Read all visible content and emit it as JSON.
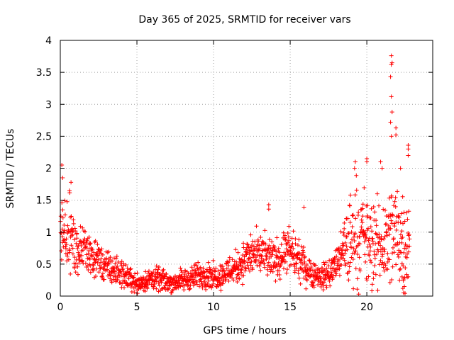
{
  "chart_data": {
    "type": "scatter",
    "title": "Day 365 of 2025, SRMTID for receiver vars",
    "xlabel": "GPS time / hours",
    "ylabel": "SRMTID / TECUs",
    "xlim": [
      0,
      24.3
    ],
    "ylim": [
      0,
      4
    ],
    "xticks": [
      0,
      5,
      10,
      15,
      20
    ],
    "yticks": [
      0,
      0.5,
      1,
      1.5,
      2,
      2.5,
      3,
      3.5,
      4
    ],
    "xtick_labels": [
      "0",
      "5",
      "10",
      "15",
      "20"
    ],
    "ytick_labels": [
      "0",
      "0.5",
      "1",
      "1.5",
      "2",
      "2.5",
      "3",
      "3.5",
      "4"
    ],
    "grid": true,
    "marker": "+",
    "color": "#ff0000",
    "trend": [
      [
        0.0,
        1.0
      ],
      [
        0.3,
        1.1
      ],
      [
        0.5,
        0.9
      ],
      [
        1.0,
        0.75
      ],
      [
        1.5,
        0.7
      ],
      [
        2.0,
        0.65
      ],
      [
        2.5,
        0.55
      ],
      [
        3.0,
        0.45
      ],
      [
        3.5,
        0.4
      ],
      [
        4.0,
        0.35
      ],
      [
        4.5,
        0.28
      ],
      [
        5.0,
        0.2
      ],
      [
        5.5,
        0.22
      ],
      [
        6.0,
        0.28
      ],
      [
        6.5,
        0.25
      ],
      [
        7.0,
        0.22
      ],
      [
        7.5,
        0.22
      ],
      [
        8.0,
        0.25
      ],
      [
        8.5,
        0.28
      ],
      [
        9.0,
        0.32
      ],
      [
        9.5,
        0.35
      ],
      [
        10.0,
        0.3
      ],
      [
        10.5,
        0.32
      ],
      [
        11.0,
        0.4
      ],
      [
        11.5,
        0.45
      ],
      [
        12.0,
        0.55
      ],
      [
        12.5,
        0.65
      ],
      [
        13.0,
        0.65
      ],
      [
        13.5,
        0.6
      ],
      [
        14.0,
        0.55
      ],
      [
        14.5,
        0.65
      ],
      [
        15.0,
        0.7
      ],
      [
        15.5,
        0.55
      ],
      [
        16.0,
        0.45
      ],
      [
        16.5,
        0.35
      ],
      [
        17.0,
        0.3
      ],
      [
        17.5,
        0.35
      ],
      [
        18.0,
        0.5
      ],
      [
        18.5,
        0.7
      ],
      [
        19.0,
        0.9
      ],
      [
        19.5,
        1.0
      ],
      [
        20.0,
        0.85
      ],
      [
        20.5,
        0.75
      ],
      [
        21.0,
        0.8
      ],
      [
        21.5,
        0.95
      ],
      [
        22.0,
        1.0
      ],
      [
        22.5,
        0.9
      ],
      [
        22.8,
        0.85
      ]
    ],
    "highlights": [
      [
        0.1,
        2.05
      ],
      [
        0.15,
        1.85
      ],
      [
        0.7,
        1.78
      ],
      [
        0.6,
        1.65
      ],
      [
        13.6,
        1.43
      ],
      [
        13.6,
        1.36
      ],
      [
        15.9,
        1.39
      ],
      [
        19.2,
        2.0
      ],
      [
        19.25,
        2.1
      ],
      [
        20.0,
        2.15
      ],
      [
        20.0,
        2.1
      ],
      [
        20.9,
        2.1
      ],
      [
        21.0,
        2.0
      ],
      [
        21.6,
        3.76
      ],
      [
        21.65,
        3.65
      ],
      [
        21.6,
        3.62
      ],
      [
        21.55,
        3.43
      ],
      [
        21.6,
        3.12
      ],
      [
        21.65,
        2.88
      ],
      [
        21.55,
        2.72
      ],
      [
        21.6,
        2.5
      ],
      [
        21.9,
        2.63
      ],
      [
        21.9,
        2.52
      ],
      [
        22.2,
        2.0
      ],
      [
        22.7,
        2.36
      ],
      [
        22.7,
        2.3
      ],
      [
        22.7,
        2.2
      ],
      [
        22.4,
        0.05
      ],
      [
        22.35,
        0.12
      ],
      [
        22.45,
        0.15
      ],
      [
        22.3,
        0.3
      ]
    ]
  }
}
